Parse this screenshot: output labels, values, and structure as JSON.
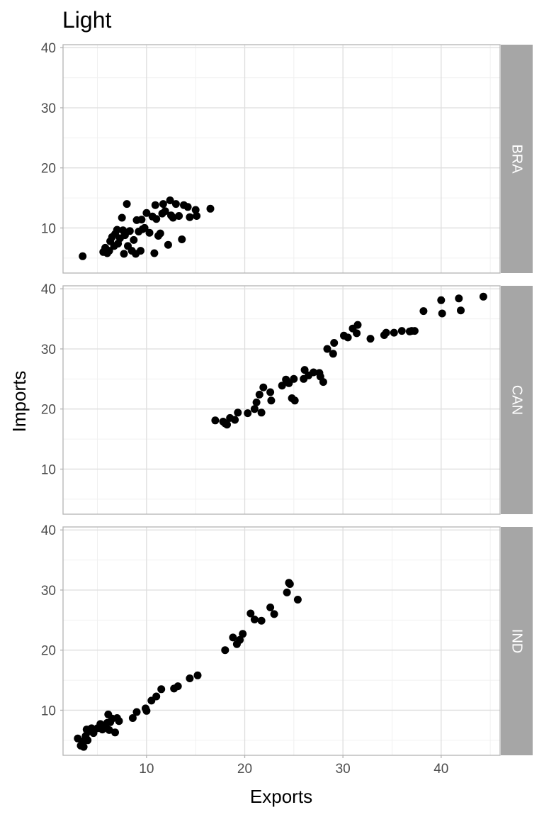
{
  "chart_data": {
    "type": "scatter",
    "title": "Light",
    "xlabel": "Exports",
    "ylabel": "Imports",
    "xlim": [
      1.5,
      46
    ],
    "ylim": [
      2.5,
      40.5
    ],
    "x_ticks": [
      10,
      20,
      30,
      40
    ],
    "y_ticks": [
      10,
      20,
      30,
      40
    ],
    "grid": true,
    "point_color": "#000000",
    "strip_color": "#a6a6a6",
    "panels": [
      {
        "name": "BRA",
        "points": [
          [
            3.5,
            5.3
          ],
          [
            5.6,
            6.0
          ],
          [
            5.8,
            6.7
          ],
          [
            6.0,
            5.8
          ],
          [
            6.2,
            6.2
          ],
          [
            6.3,
            7.8
          ],
          [
            6.5,
            8.5
          ],
          [
            6.7,
            7.0
          ],
          [
            6.8,
            9.0
          ],
          [
            7.0,
            9.7
          ],
          [
            7.1,
            7.4
          ],
          [
            7.3,
            8.3
          ],
          [
            7.5,
            11.7
          ],
          [
            7.6,
            9.6
          ],
          [
            7.7,
            5.7
          ],
          [
            7.8,
            8.8
          ],
          [
            8.0,
            14.0
          ],
          [
            8.1,
            7.0
          ],
          [
            8.3,
            9.5
          ],
          [
            8.5,
            6.2
          ],
          [
            8.7,
            8.0
          ],
          [
            8.9,
            5.7
          ],
          [
            9.0,
            11.3
          ],
          [
            9.2,
            9.4
          ],
          [
            9.4,
            6.2
          ],
          [
            9.5,
            11.4
          ],
          [
            9.6,
            9.8
          ],
          [
            9.8,
            10.0
          ],
          [
            10.0,
            12.5
          ],
          [
            10.3,
            9.2
          ],
          [
            10.6,
            11.9
          ],
          [
            10.8,
            5.8
          ],
          [
            10.9,
            13.8
          ],
          [
            11.0,
            11.5
          ],
          [
            11.2,
            8.7
          ],
          [
            11.4,
            9.1
          ],
          [
            11.6,
            12.4
          ],
          [
            11.7,
            14.0
          ],
          [
            11.9,
            12.8
          ],
          [
            12.2,
            7.2
          ],
          [
            12.4,
            14.6
          ],
          [
            12.5,
            12.1
          ],
          [
            12.7,
            11.7
          ],
          [
            13.0,
            14.0
          ],
          [
            13.3,
            12.0
          ],
          [
            13.6,
            8.1
          ],
          [
            13.8,
            13.8
          ],
          [
            14.2,
            13.5
          ],
          [
            14.4,
            11.8
          ],
          [
            15.0,
            13.0
          ],
          [
            15.1,
            12.0
          ],
          [
            16.5,
            13.2
          ]
        ]
      },
      {
        "name": "CAN",
        "points": [
          [
            17.0,
            18.1
          ],
          [
            17.8,
            17.9
          ],
          [
            18.0,
            17.6
          ],
          [
            18.2,
            17.4
          ],
          [
            18.5,
            18.5
          ],
          [
            19.0,
            18.2
          ],
          [
            19.3,
            19.4
          ],
          [
            20.3,
            19.3
          ],
          [
            21.0,
            20.0
          ],
          [
            21.2,
            21.1
          ],
          [
            21.5,
            22.4
          ],
          [
            21.7,
            19.4
          ],
          [
            21.9,
            23.6
          ],
          [
            22.6,
            22.8
          ],
          [
            22.7,
            21.4
          ],
          [
            23.8,
            23.9
          ],
          [
            24.2,
            24.9
          ],
          [
            24.5,
            24.3
          ],
          [
            24.8,
            21.8
          ],
          [
            25.0,
            25.0
          ],
          [
            25.1,
            21.4
          ],
          [
            26.0,
            25.0
          ],
          [
            26.1,
            26.5
          ],
          [
            26.5,
            25.6
          ],
          [
            27.0,
            26.1
          ],
          [
            27.6,
            26.0
          ],
          [
            27.7,
            25.4
          ],
          [
            28.0,
            24.5
          ],
          [
            28.4,
            30.0
          ],
          [
            29.0,
            29.2
          ],
          [
            29.1,
            31.0
          ],
          [
            30.1,
            32.2
          ],
          [
            30.5,
            31.9
          ],
          [
            31.0,
            33.4
          ],
          [
            31.4,
            32.6
          ],
          [
            31.5,
            34.0
          ],
          [
            32.8,
            31.7
          ],
          [
            34.2,
            32.3
          ],
          [
            34.4,
            32.7
          ],
          [
            35.2,
            32.7
          ],
          [
            36.0,
            33.0
          ],
          [
            36.8,
            32.9
          ],
          [
            37.0,
            33.0
          ],
          [
            37.3,
            33.0
          ],
          [
            38.2,
            36.3
          ],
          [
            40.0,
            38.1
          ],
          [
            40.1,
            35.9
          ],
          [
            41.8,
            38.4
          ],
          [
            42.0,
            36.4
          ],
          [
            44.3,
            38.7
          ]
        ]
      },
      {
        "name": "IND",
        "points": [
          [
            3.0,
            5.3
          ],
          [
            3.3,
            4.1
          ],
          [
            3.5,
            4.8
          ],
          [
            3.6,
            3.9
          ],
          [
            3.8,
            5.7
          ],
          [
            3.9,
            6.8
          ],
          [
            4.0,
            5.0
          ],
          [
            4.2,
            6.5
          ],
          [
            4.4,
            7.0
          ],
          [
            4.6,
            6.2
          ],
          [
            5.0,
            7.0
          ],
          [
            5.3,
            7.7
          ],
          [
            5.5,
            6.8
          ],
          [
            5.7,
            7.3
          ],
          [
            6.0,
            7.9
          ],
          [
            6.1,
            9.3
          ],
          [
            6.2,
            6.7
          ],
          [
            6.3,
            8.0
          ],
          [
            6.5,
            8.6
          ],
          [
            6.8,
            6.3
          ],
          [
            7.0,
            8.7
          ],
          [
            7.2,
            8.2
          ],
          [
            8.6,
            8.7
          ],
          [
            9.0,
            9.7
          ],
          [
            9.9,
            10.3
          ],
          [
            10.0,
            9.9
          ],
          [
            10.5,
            11.6
          ],
          [
            11.0,
            12.3
          ],
          [
            11.5,
            13.5
          ],
          [
            12.8,
            13.6
          ],
          [
            13.2,
            14.0
          ],
          [
            14.4,
            15.3
          ],
          [
            15.2,
            15.8
          ],
          [
            18.0,
            20.0
          ],
          [
            18.8,
            22.1
          ],
          [
            19.2,
            21.0
          ],
          [
            19.5,
            21.7
          ],
          [
            19.8,
            22.7
          ],
          [
            20.6,
            26.1
          ],
          [
            21.0,
            25.1
          ],
          [
            21.7,
            24.9
          ],
          [
            22.6,
            27.1
          ],
          [
            23.0,
            26.0
          ],
          [
            24.3,
            29.6
          ],
          [
            24.5,
            31.2
          ],
          [
            24.6,
            31.0
          ],
          [
            25.4,
            28.4
          ]
        ]
      }
    ]
  }
}
